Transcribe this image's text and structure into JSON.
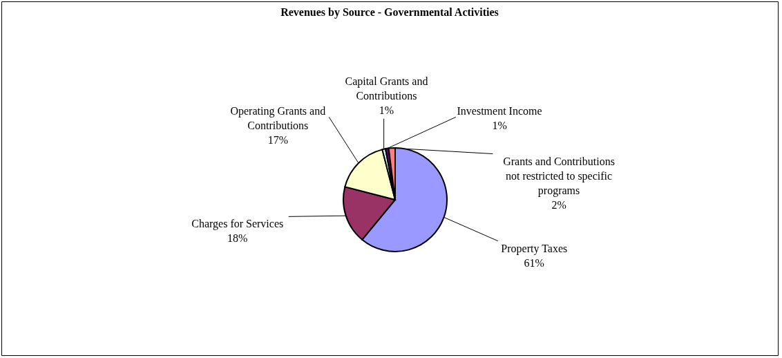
{
  "chart_data": {
    "type": "pie",
    "title": "Revenues by Source - Governmental Activities",
    "categories": [
      "Property Taxes",
      "Charges for Services",
      "Operating Grants and Contributions",
      "Capital Grants and Contributions",
      "Investment Income",
      "Grants and Contributions not restricted to specific programs"
    ],
    "values": [
      61,
      18,
      17,
      1,
      1,
      2
    ],
    "colors": [
      "#9999ff",
      "#993366",
      "#ffffcc",
      "#ccffff",
      "#660066",
      "#ff8080"
    ],
    "value_labels": [
      "61%",
      "18%",
      "17%",
      "1%",
      "1%",
      "2%"
    ],
    "legend": false
  }
}
